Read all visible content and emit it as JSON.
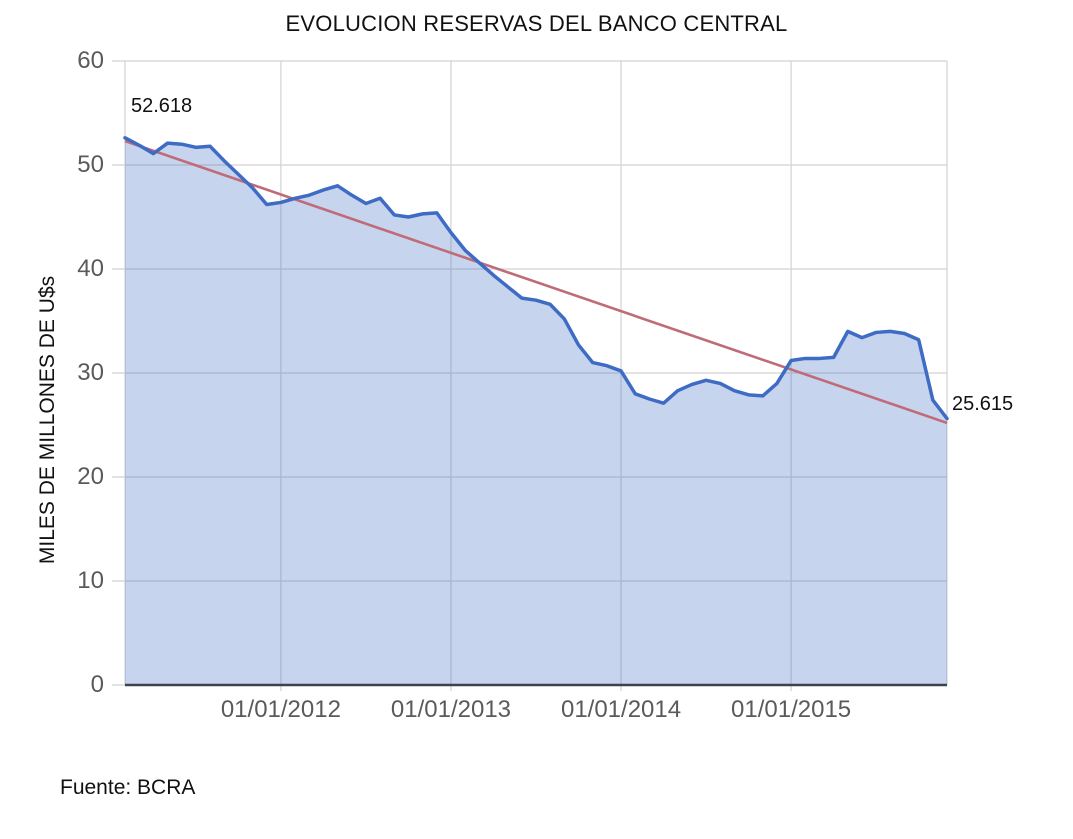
{
  "source": "Fuente: BCRA",
  "colors": {
    "line": "#3E6BC4",
    "fill_rgba": "rgba(68,114,196,0.30)",
    "trend": "#BF6B78",
    "grid": "#D2D2D2",
    "axis": "#3C4350",
    "tick_text": "#5A5A5A",
    "text": "#111111"
  },
  "chart_data": {
    "type": "area",
    "title": "EVOLUCION RESERVAS DEL BANCO CENTRAL",
    "xlabel": "",
    "ylabel": "MILES DE MILLONES DE U$s",
    "ylim": [
      0,
      60
    ],
    "y_ticks": [
      0,
      10,
      20,
      30,
      40,
      50,
      60
    ],
    "grid": true,
    "legend": "none",
    "x": [
      "02/2011",
      "03/2011",
      "04/2011",
      "05/2011",
      "06/2011",
      "07/2011",
      "08/2011",
      "09/2011",
      "10/2011",
      "11/2011",
      "12/2011",
      "01/2012",
      "02/2012",
      "03/2012",
      "04/2012",
      "05/2012",
      "06/2012",
      "07/2012",
      "08/2012",
      "09/2012",
      "10/2012",
      "11/2012",
      "12/2012",
      "01/2013",
      "02/2013",
      "03/2013",
      "04/2013",
      "05/2013",
      "06/2013",
      "07/2013",
      "08/2013",
      "09/2013",
      "10/2013",
      "11/2013",
      "12/2013",
      "01/2014",
      "02/2014",
      "03/2014",
      "04/2014",
      "05/2014",
      "06/2014",
      "07/2014",
      "08/2014",
      "09/2014",
      "10/2014",
      "11/2014",
      "12/2014",
      "01/2015",
      "02/2015",
      "03/2015",
      "04/2015",
      "05/2015",
      "06/2015",
      "07/2015",
      "08/2015",
      "09/2015",
      "10/2015",
      "11/2015",
      "12/2015"
    ],
    "x_tick_indices": [
      11,
      23,
      35,
      47
    ],
    "x_tick_labels": [
      "01/01/2012",
      "01/01/2013",
      "01/01/2014",
      "01/01/2015"
    ],
    "series": [
      {
        "name": "Reservas del Banco Central",
        "style": "area",
        "values": [
          52.618,
          51.9,
          51.1,
          52.1,
          52.0,
          51.7,
          51.8,
          50.4,
          49.1,
          47.8,
          46.2,
          46.4,
          46.8,
          47.1,
          47.6,
          48.0,
          47.1,
          46.3,
          46.8,
          45.2,
          45.0,
          45.3,
          45.4,
          43.5,
          41.8,
          40.6,
          39.4,
          38.3,
          37.2,
          37.0,
          36.6,
          35.2,
          32.7,
          31.0,
          30.7,
          30.2,
          28.0,
          27.5,
          27.1,
          28.3,
          28.9,
          29.3,
          29.0,
          28.3,
          27.9,
          27.8,
          29.0,
          31.2,
          31.4,
          31.4,
          31.5,
          34.0,
          33.4,
          33.9,
          34.0,
          33.8,
          33.2,
          27.4,
          25.615
        ]
      },
      {
        "name": "Tendencia lineal",
        "style": "trend",
        "trend_start": 52.3,
        "trend_end": 25.2
      }
    ],
    "annotations": [
      {
        "text": "52.618",
        "point": "first"
      },
      {
        "text": "25.615",
        "point": "last"
      }
    ]
  }
}
